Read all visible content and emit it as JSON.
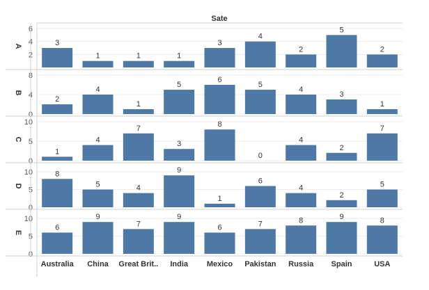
{
  "chart_data": {
    "type": "bar",
    "title": "Sate",
    "categories": [
      "Australia",
      "China",
      "Great Brit..",
      "India",
      "Mexico",
      "Pakistan",
      "Russia",
      "Spain",
      "USA"
    ],
    "series": [
      {
        "name": "A",
        "values": [
          3,
          1,
          1,
          1,
          3,
          4,
          2,
          5,
          2
        ],
        "ylim": [
          0,
          6
        ],
        "yticks": [
          2,
          4,
          6
        ]
      },
      {
        "name": "B",
        "values": [
          2,
          4,
          1,
          5,
          6,
          5,
          4,
          3,
          1
        ],
        "ylim": [
          0,
          8
        ],
        "yticks": [
          0,
          4,
          8
        ]
      },
      {
        "name": "C",
        "values": [
          1,
          4,
          7,
          3,
          8,
          0,
          4,
          2,
          7
        ],
        "ylim": [
          0,
          10
        ],
        "yticks": [
          0,
          5,
          10
        ]
      },
      {
        "name": "D",
        "values": [
          8,
          5,
          4,
          9,
          1,
          6,
          4,
          2,
          5
        ],
        "ylim": [
          0,
          11
        ],
        "yticks": [
          0,
          5,
          10
        ]
      },
      {
        "name": "E",
        "values": [
          6,
          9,
          7,
          9,
          6,
          7,
          8,
          9,
          8
        ],
        "ylim": [
          0,
          11
        ],
        "yticks": [
          0,
          5,
          10
        ]
      }
    ],
    "grid": true,
    "colors": {
      "bar": "#4e79a7",
      "grid": "#ececec",
      "axis": "#d0d0d0",
      "text": "#333333",
      "label": "#555555"
    }
  }
}
